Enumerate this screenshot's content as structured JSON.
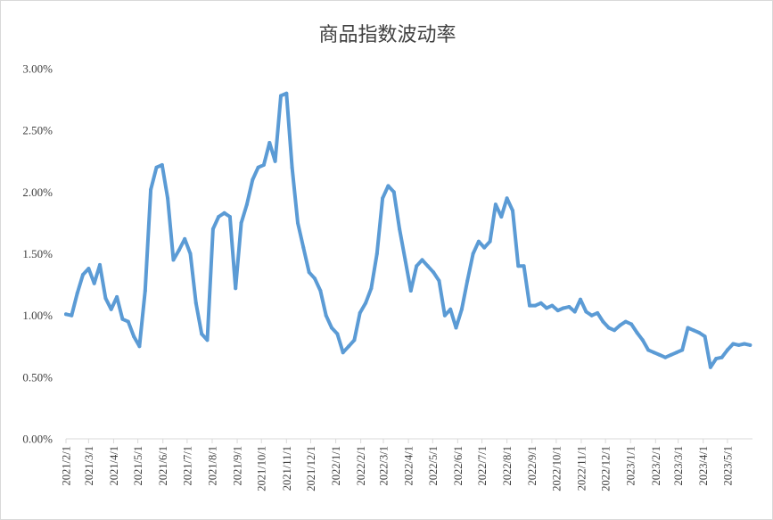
{
  "chart_data": {
    "type": "line",
    "title": "商品指数波动率",
    "xlabel": "",
    "ylabel": "",
    "ylim": [
      0,
      0.03
    ],
    "y_ticks": [
      0,
      0.005,
      0.01,
      0.015,
      0.02,
      0.025,
      0.03
    ],
    "y_tick_labels": [
      "0.00%",
      "0.50%",
      "1.00%",
      "1.50%",
      "2.00%",
      "2.50%",
      "3.00%"
    ],
    "x_tick_labels": [
      "2021/2/1",
      "2021/3/1",
      "2021/4/1",
      "2021/5/1",
      "2021/6/1",
      "2021/7/1",
      "2021/8/1",
      "2021/9/1",
      "2021/10/1",
      "2021/11/1",
      "2021/12/1",
      "2022/1/1",
      "2022/2/1",
      "2022/3/1",
      "2022/4/1",
      "2022/5/1",
      "2022/6/1",
      "2022/7/1",
      "2022/8/1",
      "2022/9/1",
      "2022/10/1",
      "2022/11/1",
      "2022/12/1",
      "2023/1/1",
      "2023/2/1",
      "2023/3/1",
      "2023/4/1",
      "2023/5/1"
    ],
    "legend": "none",
    "grid": false,
    "line_color": "#5b9bd5",
    "series": [
      {
        "x": [
          "2021/2/1",
          "2021/2/8",
          "2021/2/15",
          "2021/2/22",
          "2021/3/1",
          "2021/3/8",
          "2021/3/15",
          "2021/3/22",
          "2021/3/29",
          "2021/4/5",
          "2021/4/12",
          "2021/4/19",
          "2021/4/26",
          "2021/5/3",
          "2021/5/10",
          "2021/5/17",
          "2021/5/24",
          "2021/5/31",
          "2021/6/7",
          "2021/6/14",
          "2021/6/21",
          "2021/6/28",
          "2021/7/5",
          "2021/7/12",
          "2021/7/19",
          "2021/7/26",
          "2021/8/2",
          "2021/8/9",
          "2021/8/16",
          "2021/8/23",
          "2021/8/30",
          "2021/9/6",
          "2021/9/13",
          "2021/9/20",
          "2021/9/27",
          "2021/10/4",
          "2021/10/11",
          "2021/10/18",
          "2021/10/25",
          "2021/11/1",
          "2021/11/8",
          "2021/11/15",
          "2021/11/22",
          "2021/11/29",
          "2021/12/6",
          "2021/12/13",
          "2021/12/20",
          "2021/12/27",
          "2022/1/3",
          "2022/1/10",
          "2022/1/17",
          "2022/1/24",
          "2022/1/31",
          "2022/2/7",
          "2022/2/14",
          "2022/2/21",
          "2022/2/28",
          "2022/3/7",
          "2022/3/14",
          "2022/3/21",
          "2022/3/28",
          "2022/4/4",
          "2022/4/11",
          "2022/4/18",
          "2022/4/25",
          "2022/5/2",
          "2022/5/9",
          "2022/5/16",
          "2022/5/23",
          "2022/5/30",
          "2022/6/6",
          "2022/6/13",
          "2022/6/20",
          "2022/6/27",
          "2022/7/4",
          "2022/7/11",
          "2022/7/18",
          "2022/7/25",
          "2022/8/1",
          "2022/8/8",
          "2022/8/15",
          "2022/8/22",
          "2022/8/29",
          "2022/9/5",
          "2022/9/12",
          "2022/9/19",
          "2022/9/26",
          "2022/10/3",
          "2022/10/10",
          "2022/10/17",
          "2022/10/24",
          "2022/10/31",
          "2022/11/7",
          "2022/11/14",
          "2022/11/21",
          "2022/11/28",
          "2022/12/5",
          "2022/12/12",
          "2022/12/19",
          "2022/12/26",
          "2023/1/2",
          "2023/1/9",
          "2023/1/16",
          "2023/1/23",
          "2023/1/30",
          "2023/2/6",
          "2023/2/13",
          "2023/2/20",
          "2023/2/27",
          "2023/3/6",
          "2023/3/13",
          "2023/3/20",
          "2023/3/27",
          "2023/4/3",
          "2023/4/10",
          "2023/4/17",
          "2023/4/24",
          "2023/5/1",
          "2023/5/8",
          "2023/5/15",
          "2023/5/22",
          "2023/5/29"
        ],
        "values": [
          0.0101,
          0.01,
          0.0118,
          0.0133,
          0.0138,
          0.0126,
          0.0141,
          0.0114,
          0.0105,
          0.0115,
          0.0097,
          0.0095,
          0.0083,
          0.0075,
          0.012,
          0.0202,
          0.022,
          0.0222,
          0.0195,
          0.0145,
          0.0153,
          0.0162,
          0.015,
          0.011,
          0.0085,
          0.008,
          0.017,
          0.018,
          0.0183,
          0.018,
          0.0122,
          0.0175,
          0.019,
          0.021,
          0.022,
          0.0222,
          0.024,
          0.0225,
          0.0278,
          0.028,
          0.022,
          0.0175,
          0.0155,
          0.0135,
          0.013,
          0.012,
          0.01,
          0.009,
          0.0085,
          0.007,
          0.0075,
          0.008,
          0.0102,
          0.011,
          0.0122,
          0.015,
          0.0195,
          0.0205,
          0.02,
          0.017,
          0.0145,
          0.012,
          0.014,
          0.0145,
          0.014,
          0.0135,
          0.0128,
          0.01,
          0.0105,
          0.009,
          0.0105,
          0.0128,
          0.015,
          0.016,
          0.0155,
          0.016,
          0.019,
          0.018,
          0.0195,
          0.0185,
          0.014,
          0.014,
          0.0108,
          0.0108,
          0.011,
          0.0106,
          0.0108,
          0.0104,
          0.0106,
          0.0107,
          0.0103,
          0.0113,
          0.0103,
          0.01,
          0.0102,
          0.0095,
          0.009,
          0.0088,
          0.0092,
          0.0095,
          0.0093,
          0.0086,
          0.008,
          0.0072,
          0.007,
          0.0068,
          0.0066,
          0.0068,
          0.007,
          0.0072,
          0.009,
          0.0088,
          0.0086,
          0.0083,
          0.0058,
          0.0065,
          0.0066,
          0.0072,
          0.0077,
          0.0076,
          0.0077,
          0.0076
        ]
      }
    ]
  }
}
